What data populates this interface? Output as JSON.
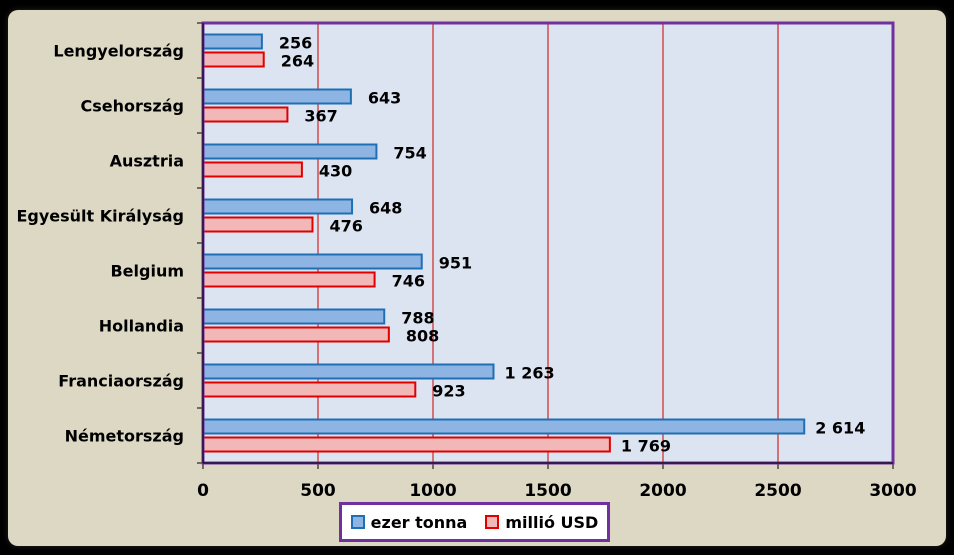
{
  "chart_data": {
    "type": "bar",
    "orientation": "horizontal",
    "categories": [
      "Lengyelország",
      "Csehország",
      "Ausztria",
      "Egyesült Királyság",
      "Belgium",
      "Hollandia",
      "Franciaország",
      "Németország"
    ],
    "series": [
      {
        "name": "ezer tonna",
        "values": [
          256,
          643,
          754,
          648,
          951,
          788,
          1263,
          2614
        ],
        "labels": [
          "256",
          "643",
          "754",
          "648",
          "951",
          "788",
          "1 263",
          "2 614"
        ],
        "fill": "#8db4e2",
        "stroke": "#1f6fb4"
      },
      {
        "name": "millió USD",
        "values": [
          264,
          367,
          430,
          476,
          746,
          808,
          923,
          1769
        ],
        "labels": [
          "264",
          "367",
          "430",
          "476",
          "746",
          "808",
          "923",
          "1 769"
        ],
        "fill": "#f2b8b8",
        "stroke": "#e00000"
      }
    ],
    "xlim": [
      0,
      3000
    ],
    "xticks": [
      "0",
      "500",
      "1000",
      "1500",
      "2000",
      "2500",
      "3000"
    ],
    "grid": "vertical",
    "legend_position": "bottom"
  },
  "colors": {
    "plot_background": "#dce3f1",
    "plot_border": "#7030a0",
    "gridline": "#cc0000",
    "panel_background": "#dcd8c4"
  }
}
